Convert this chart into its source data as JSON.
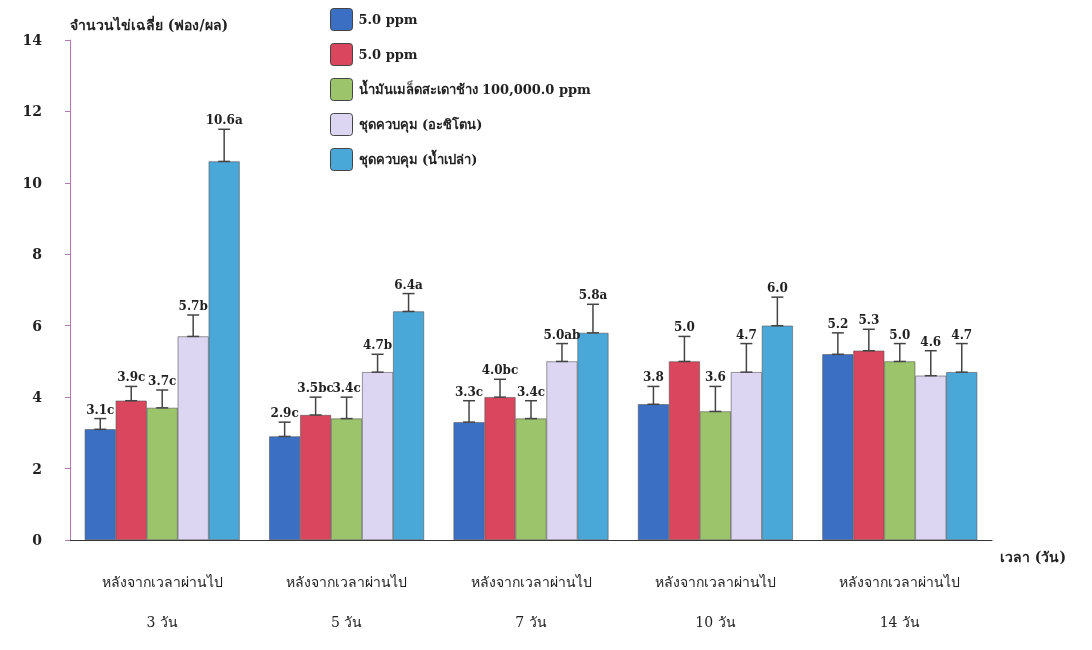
{
  "chart_data": {
    "type": "bar",
    "ylabel": "จำนวนไข่เฉลี่ย (ฟอง/ผล)",
    "xlabel": "เวลา (วัน)",
    "categories": [
      "หลังจากเวลาผ่านไป\n3 วัน",
      "หลังจากเวลาผ่านไป\n5 วัน",
      "หลังจากเวลาผ่านไป\n7 วัน",
      "หลังจากเวลาผ่านไป\n10 วัน",
      "หลังจากเวลาผ่านไป\n14 วัน"
    ],
    "series": [
      {
        "name": "5.0 ppm",
        "color": "#3a6fc4",
        "values": [
          3.1,
          2.9,
          3.3,
          3.8,
          5.2
        ],
        "errors": [
          [
            3.1,
            3.4
          ],
          [
            2.9,
            3.3
          ],
          [
            3.3,
            3.9
          ],
          [
            3.8,
            4.3
          ],
          [
            5.2,
            5.8
          ]
        ],
        "value_labels": [
          "3.1c",
          "2.9c",
          "3.3c",
          "3.8",
          "5.2"
        ]
      },
      {
        "name": "5.0 ppm",
        "color": "#d9465e",
        "values": [
          3.9,
          3.5,
          4.0,
          5.0,
          5.3
        ],
        "errors": [
          [
            3.9,
            4.3
          ],
          [
            3.5,
            4.0
          ],
          [
            4.0,
            4.5
          ],
          [
            5.0,
            5.7
          ],
          [
            5.3,
            5.9
          ]
        ],
        "value_labels": [
          "3.9c",
          "3.5bc",
          "4.0bc",
          "5.0",
          "5.3"
        ]
      },
      {
        "name": "น้ำมันเมล็ดสะเดาช้าง 100,000.0 ppm",
        "color": "#9cc46a",
        "values": [
          3.7,
          3.4,
          3.4,
          3.6,
          5.0
        ],
        "errors": [
          [
            3.7,
            4.2
          ],
          [
            3.4,
            4.0
          ],
          [
            3.4,
            3.9
          ],
          [
            3.6,
            4.3
          ],
          [
            5.0,
            5.5
          ]
        ],
        "value_labels": [
          "3.7c",
          "3.4c",
          "3.4c",
          "3.6",
          "5.0"
        ]
      },
      {
        "name": "ชุดควบคุม (อะซิโตน)",
        "color": "#dcd6f2",
        "values": [
          5.7,
          4.7,
          5.0,
          4.7,
          4.6
        ],
        "errors": [
          [
            5.7,
            6.3
          ],
          [
            4.7,
            5.2
          ],
          [
            5.0,
            5.5
          ],
          [
            4.7,
            5.5
          ],
          [
            4.6,
            5.3
          ]
        ],
        "value_labels": [
          "5.7b",
          "4.7b",
          "5.0ab",
          "4.7",
          "4.6"
        ]
      },
      {
        "name": "ชุดควบคุม (น้ำเปล่า)",
        "color": "#4aa8d8",
        "values": [
          10.6,
          6.4,
          5.8,
          6.0,
          4.7
        ],
        "errors": [
          [
            10.6,
            11.5
          ],
          [
            6.4,
            6.9
          ],
          [
            5.8,
            6.6
          ],
          [
            6.0,
            6.8
          ],
          [
            4.7,
            5.5
          ]
        ],
        "value_labels": [
          "10.6a",
          "6.4a",
          "5.8a",
          "6.0",
          "4.7"
        ]
      }
    ],
    "ylim": [
      0,
      14
    ],
    "yticks": [
      0,
      2,
      4,
      6,
      8,
      10,
      12,
      14
    ],
    "legend": "top",
    "grid": false
  }
}
